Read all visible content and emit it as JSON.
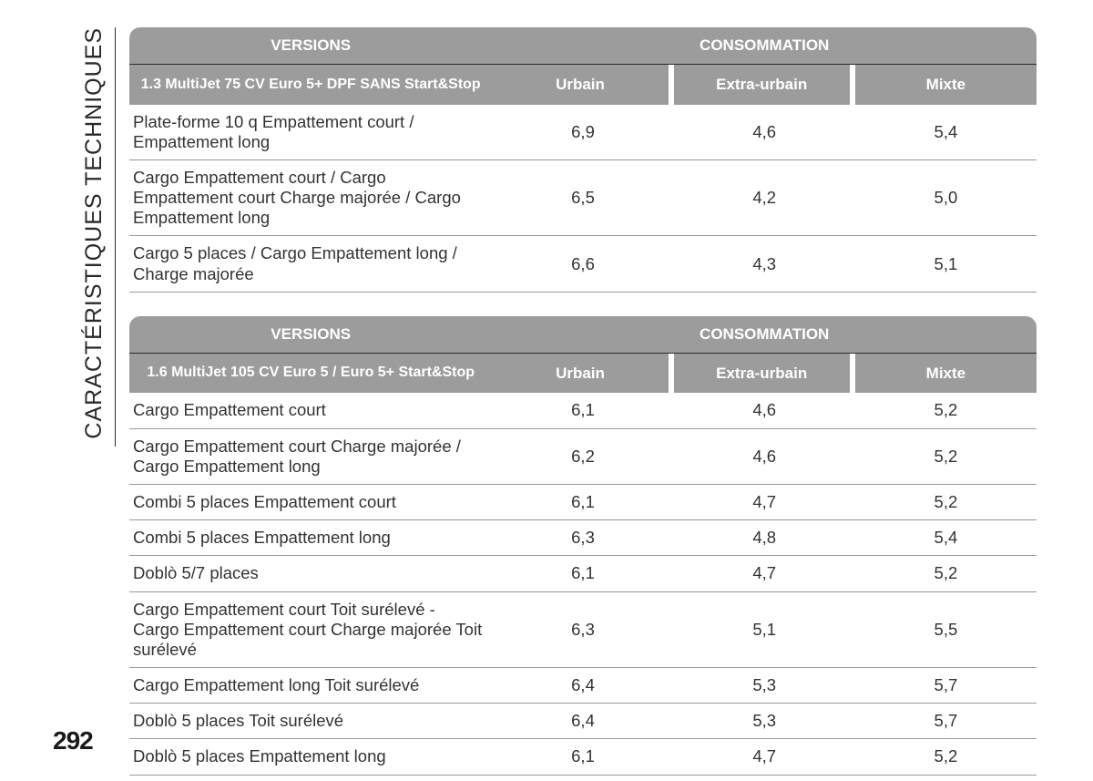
{
  "sidebar_title": "CARACTÉRISTIQUES TECHNIQUES",
  "page_number": "292",
  "colors": {
    "header_bg": "#9c9c9c",
    "header_text": "#ffffff",
    "body_text": "#333333",
    "row_border": "#9a9a9a",
    "side_rule": "#2a2a2a",
    "page_bg": "#ffffff"
  },
  "tables": [
    {
      "header": {
        "versions_label": "VERSIONS",
        "consommation_label": "CONSOMMATION",
        "version_sub": "1.3 MultiJet 75 CV Euro 5+ DPF SANS Start&Stop",
        "cols": [
          "Urbain",
          "Extra-urbain",
          "Mixte"
        ]
      },
      "rows": [
        {
          "label": "Plate-forme 10 q Empattement court / Empattement long",
          "vals": [
            "6,9",
            "4,6",
            "5,4"
          ]
        },
        {
          "label": "Cargo Empattement court / Cargo Empattement court Charge majorée / Cargo Empattement long",
          "vals": [
            "6,5",
            "4,2",
            "5,0"
          ]
        },
        {
          "label": "Cargo 5 places / Cargo Empattement long / Charge majorée",
          "vals": [
            "6,6",
            "4,3",
            "5,1"
          ]
        }
      ]
    },
    {
      "header": {
        "versions_label": "VERSIONS",
        "consommation_label": "CONSOMMATION",
        "version_sub": "1.6 MultiJet 105 CV Euro 5 / Euro 5+ Start&Stop",
        "cols": [
          "Urbain",
          "Extra-urbain",
          "Mixte"
        ]
      },
      "rows": [
        {
          "label": "Cargo Empattement court",
          "vals": [
            "6,1",
            "4,6",
            "5,2"
          ]
        },
        {
          "label": "Cargo Empattement court Charge majorée / Cargo Empattement long",
          "vals": [
            "6,2",
            "4,6",
            "5,2"
          ]
        },
        {
          "label": "Combi 5 places Empattement court",
          "vals": [
            "6,1",
            "4,7",
            "5,2"
          ]
        },
        {
          "label": "Combi 5 places Empattement long",
          "vals": [
            "6,3",
            "4,8",
            "5,4"
          ]
        },
        {
          "label": "Doblò 5/7 places",
          "vals": [
            "6,1",
            "4,7",
            "5,2"
          ]
        },
        {
          "label": "Cargo Empattement court Toit surélevé - Cargo Empattement court Charge majorée Toit surélevé",
          "vals": [
            "6,3",
            "5,1",
            "5,5"
          ]
        },
        {
          "label": "Cargo Empattement long Toit surélevé",
          "vals": [
            "6,4",
            "5,3",
            "5,7"
          ]
        },
        {
          "label": "Doblò 5 places Toit surélevé",
          "vals": [
            "6,4",
            "5,3",
            "5,7"
          ]
        },
        {
          "label": "Doblò 5 places Empattement long",
          "vals": [
            "6,1",
            "4,7",
            "5,2"
          ]
        }
      ]
    }
  ]
}
